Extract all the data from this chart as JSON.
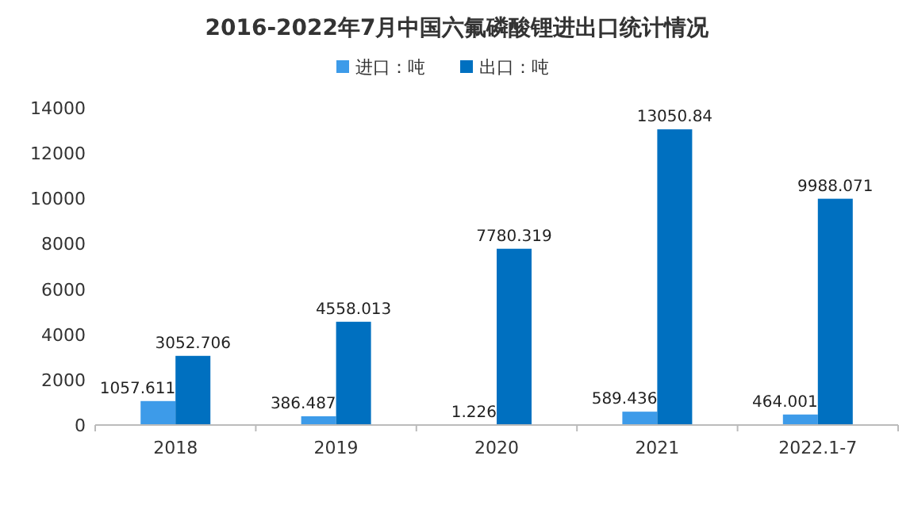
{
  "chart_data": {
    "type": "bar",
    "title": "2016-2022年7月中国六氟磷酸锂进出口统计情况",
    "categories": [
      "2018",
      "2019",
      "2020",
      "2021",
      "2022.1-7"
    ],
    "series": [
      {
        "name": "进口：吨",
        "color": "#3d9be9",
        "values": [
          1057.611,
          386.487,
          1.226,
          589.436,
          464.001
        ]
      },
      {
        "name": "出口：吨",
        "color": "#0070c0",
        "values": [
          3052.706,
          4558.013,
          7780.319,
          13050.84,
          9988.071
        ]
      }
    ],
    "ylim": [
      0,
      14000
    ],
    "yticks": [
      0,
      2000,
      4000,
      6000,
      8000,
      10000,
      12000,
      14000
    ],
    "data_labels": true,
    "legend": "top",
    "grid": false
  }
}
